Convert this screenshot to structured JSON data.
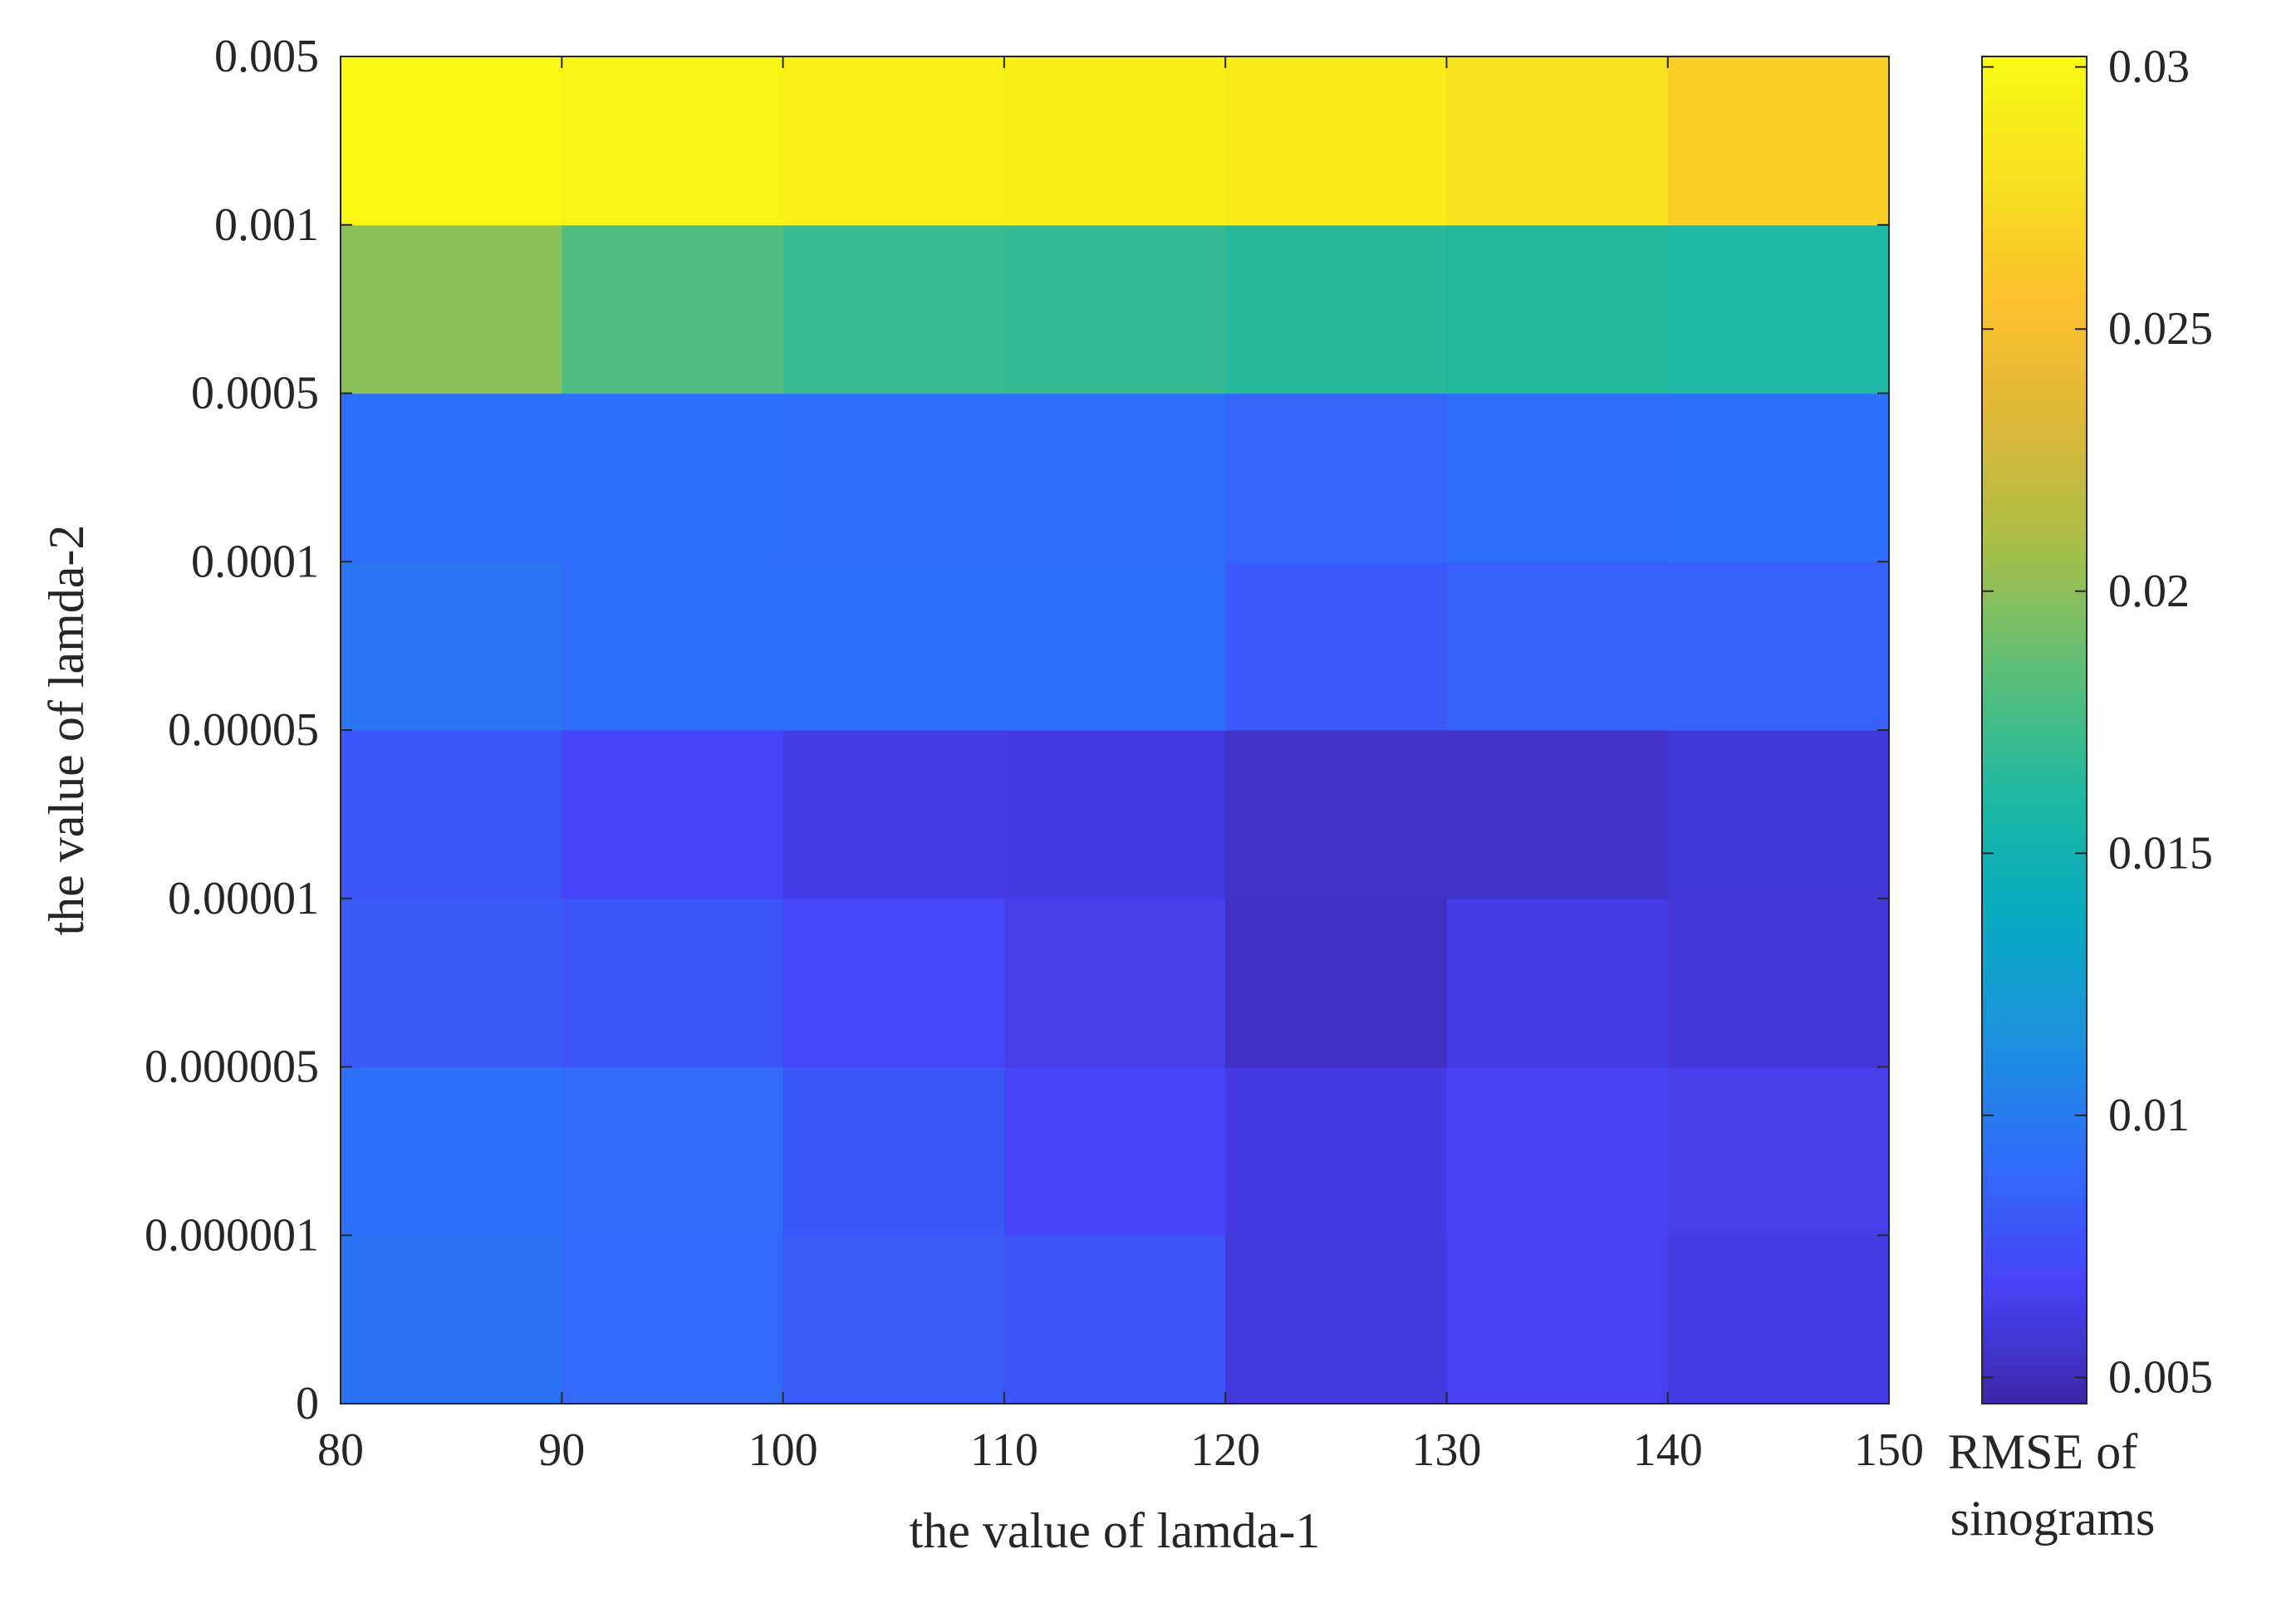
{
  "chart_data": {
    "type": "heatmap",
    "title": "",
    "xlabel": "the value of lamda-1",
    "ylabel": "the value of lamda-2",
    "x_ticks": [
      "80",
      "90",
      "100",
      "110",
      "120",
      "130",
      "140",
      "150"
    ],
    "y_ticks": [
      "0",
      "0.000001",
      "0.000005",
      "0.00001",
      "0.00005",
      "0.0001",
      "0.0005",
      "0.001",
      "0.005"
    ],
    "x_cells": [
      "80-90",
      "90-100",
      "100-110",
      "110-120",
      "120-130",
      "130-140",
      "140-150"
    ],
    "y_cells": [
      "0-0.000001",
      "0.000001-0.000005",
      "0.000005-0.00001",
      "0.00001-0.00005",
      "0.00005-0.0001",
      "0.0001-0.0005",
      "0.0005-0.001",
      "0.001-0.005"
    ],
    "values": [
      [
        0.0095,
        0.0089,
        0.0082,
        0.0077,
        0.006,
        0.0066,
        0.0062
      ],
      [
        0.0093,
        0.009,
        0.0079,
        0.0068,
        0.0061,
        0.0067,
        0.0064
      ],
      [
        0.0081,
        0.0078,
        0.007,
        0.0064,
        0.0053,
        0.0063,
        0.0058
      ],
      [
        0.0078,
        0.0069,
        0.0063,
        0.0061,
        0.0054,
        0.0054,
        0.0059
      ],
      [
        0.0097,
        0.0092,
        0.0092,
        0.0092,
        0.008,
        0.0084,
        0.0084
      ],
      [
        0.0092,
        0.0092,
        0.0091,
        0.0091,
        0.0087,
        0.0091,
        0.0092
      ],
      [
        0.0199,
        0.018,
        0.0171,
        0.0169,
        0.0165,
        0.0163,
        0.016
      ],
      [
        0.0299,
        0.0297,
        0.0294,
        0.0293,
        0.0289,
        0.028,
        0.0266
      ]
    ],
    "colorbar": {
      "range": [
        0.0045,
        0.0302
      ],
      "ticks": [
        0.005,
        0.01,
        0.015,
        0.02,
        0.025,
        0.03
      ],
      "tick_labels": [
        "0.005",
        "0.01",
        "0.015",
        "0.02",
        "0.025",
        "0.03"
      ],
      "label_lines": [
        "RMSE of",
        "sinograms"
      ]
    },
    "colormap": [
      "#3e26a8",
      "#4743f8",
      "#2f6ef8",
      "#1b92dd",
      "#07aac1",
      "#20b8a0",
      "#5ebf77",
      "#a8bf47",
      "#ddb83a",
      "#fdc12e",
      "#f7e120",
      "#f9fb15"
    ]
  }
}
